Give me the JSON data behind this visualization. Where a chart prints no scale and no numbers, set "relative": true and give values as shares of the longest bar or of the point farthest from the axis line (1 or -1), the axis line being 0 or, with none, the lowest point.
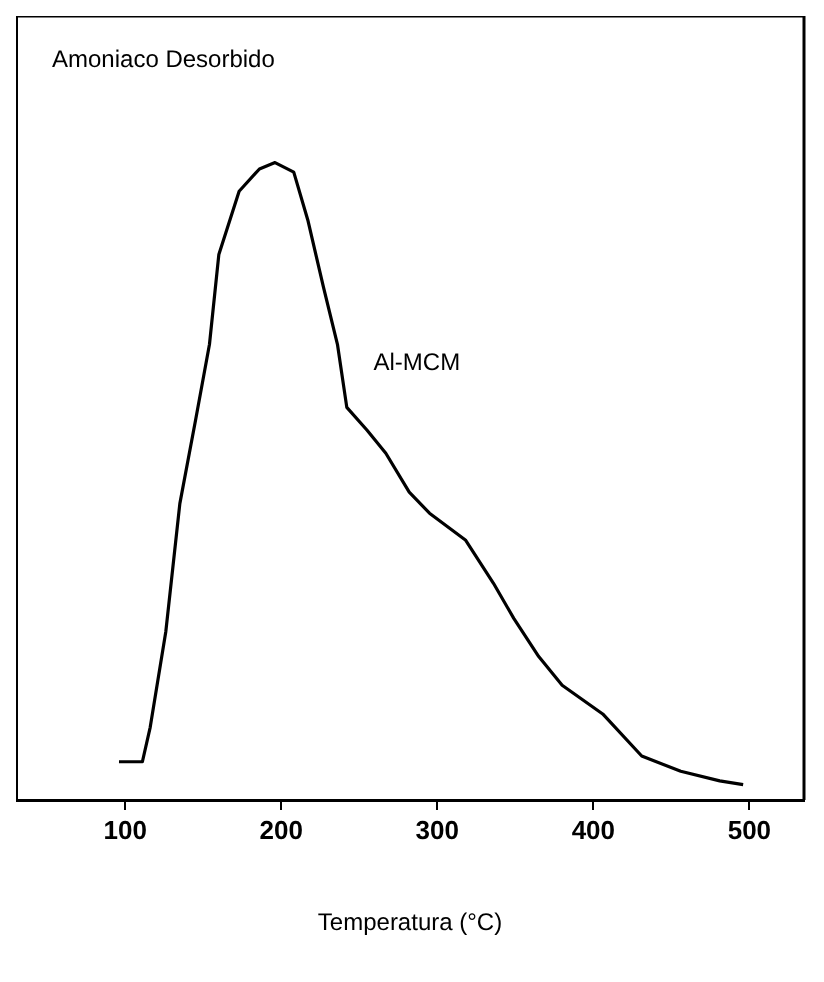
{
  "chart_data": {
    "type": "line",
    "relative": true,
    "ylabel": "Amoniaco Desorbido",
    "xlabel": "Temperatura (°C)",
    "xlim": [
      30,
      535
    ],
    "xticks": [
      100,
      200,
      300,
      400,
      500
    ],
    "grid": false,
    "legend": false,
    "marker": "none",
    "line_style": "solid",
    "series": [
      {
        "name": "Al-MCM",
        "color": "#000000",
        "x": [
          96,
          111,
          116,
          126,
          135,
          145,
          154,
          160,
          173,
          186,
          196,
          208,
          217,
          227,
          236,
          242,
          255,
          267,
          282,
          295,
          318,
          336,
          349,
          365,
          380,
          406,
          431,
          456,
          481,
          496
        ],
        "values": [
          0.06,
          0.06,
          0.114,
          0.264,
          0.465,
          0.595,
          0.715,
          0.856,
          0.955,
          0.99,
          1,
          0.985,
          0.91,
          0.805,
          0.715,
          0.616,
          0.58,
          0.544,
          0.483,
          0.45,
          0.408,
          0.34,
          0.285,
          0.225,
          0.18,
          0.135,
          0.069,
          0.045,
          0.03,
          0.024
        ]
      }
    ]
  }
}
